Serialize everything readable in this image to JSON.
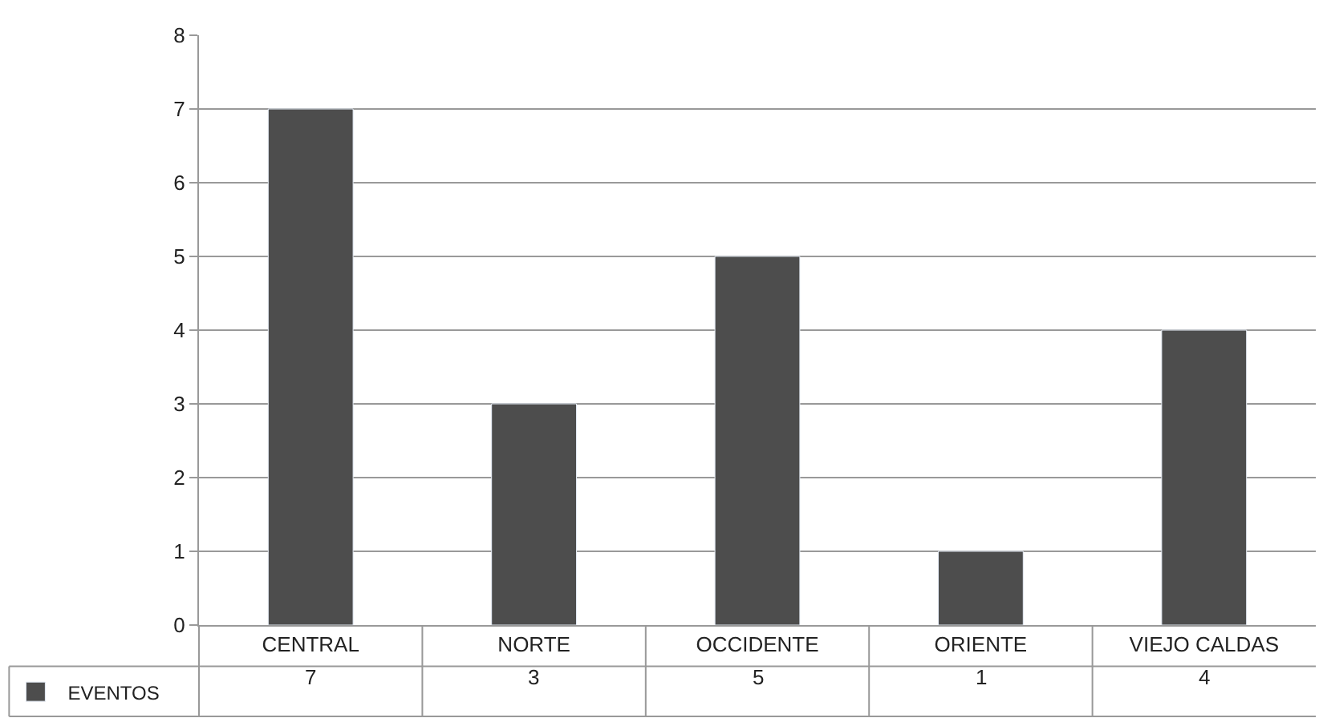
{
  "chart_data": {
    "type": "bar",
    "categories": [
      "CENTRAL",
      "NORTE",
      "OCCIDENTE",
      "ORIENTE",
      "VIEJO CALDAS"
    ],
    "series": [
      {
        "name": "EVENTOS",
        "color": "#4d4d4d",
        "values": [
          7,
          3,
          5,
          1,
          4
        ]
      }
    ],
    "ylim": [
      0,
      8
    ],
    "yticks": [
      0,
      1,
      2,
      3,
      4,
      5,
      6,
      7,
      8
    ],
    "grid": "y",
    "legend": "bottom left",
    "data_labels": true
  }
}
